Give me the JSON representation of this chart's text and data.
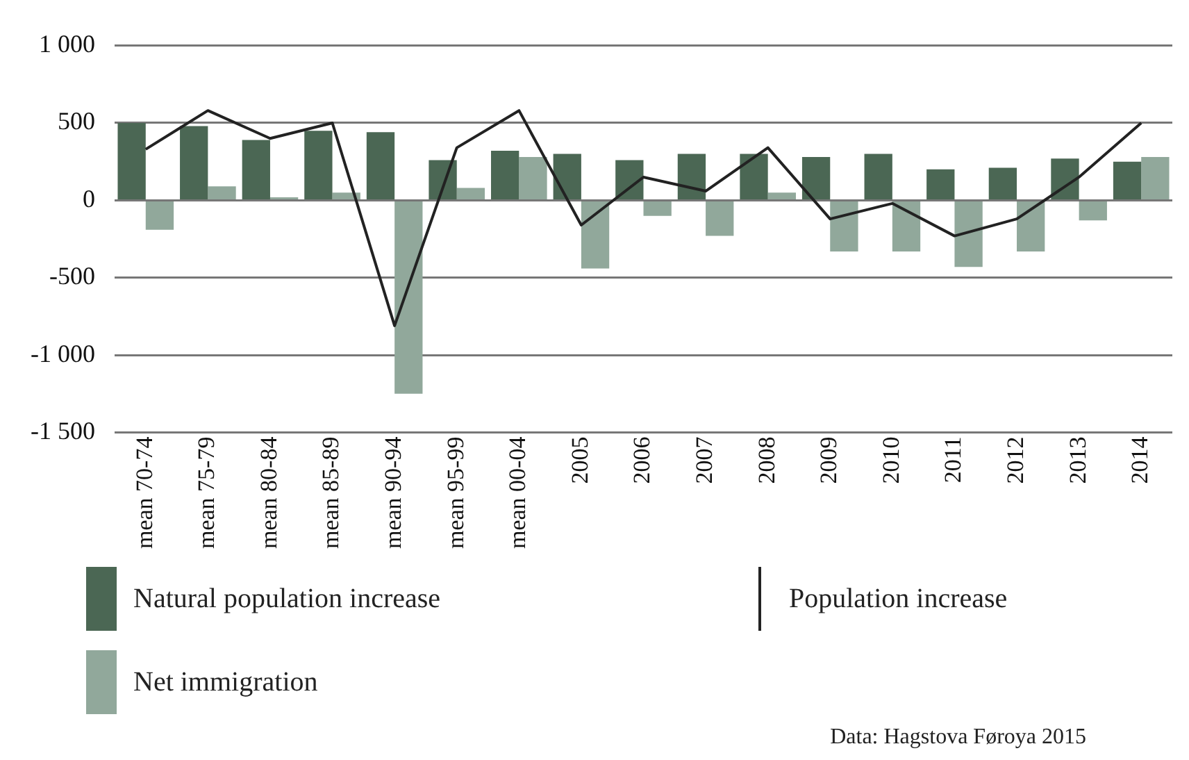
{
  "chart_data": {
    "type": "bar",
    "categories": [
      "mean 70-74",
      "mean 75-79",
      "mean 80-84",
      "mean 85-89",
      "mean 90-94",
      "mean 95-99",
      "mean 00-04",
      "2005",
      "2006",
      "2007",
      "2008",
      "2009",
      "2010",
      "2011",
      "2012",
      "2013",
      "2014"
    ],
    "series": [
      {
        "name": "Natural population increase",
        "color": "#4b6754",
        "values": [
          500,
          480,
          390,
          450,
          440,
          260,
          320,
          300,
          260,
          300,
          300,
          280,
          300,
          200,
          210,
          270,
          250
        ]
      },
      {
        "name": "Net immigration",
        "color": "#91a89b",
        "values": [
          -190,
          90,
          20,
          50,
          -1250,
          80,
          280,
          -440,
          -100,
          -230,
          50,
          -330,
          -330,
          -430,
          -330,
          -130,
          280
        ]
      },
      {
        "name": "Population increase",
        "type": "line",
        "color": "#222222",
        "values": [
          330,
          580,
          400,
          500,
          -810,
          340,
          580,
          -160,
          150,
          60,
          340,
          -120,
          -20,
          -230,
          -120,
          150,
          500
        ]
      }
    ],
    "ylim": [
      -1500,
      1000
    ],
    "yticks": [
      {
        "value": -1500,
        "label": "-1 500"
      },
      {
        "value": -1000,
        "label": "-1 000"
      },
      -500,
      0,
      500,
      {
        "value": 1000,
        "label": "1 000"
      }
    ],
    "grid": "y",
    "legend": "bottom",
    "marker": "none",
    "line_style": "solid",
    "annotations": [
      "Data: Hagstova Føroya 2015"
    ]
  }
}
